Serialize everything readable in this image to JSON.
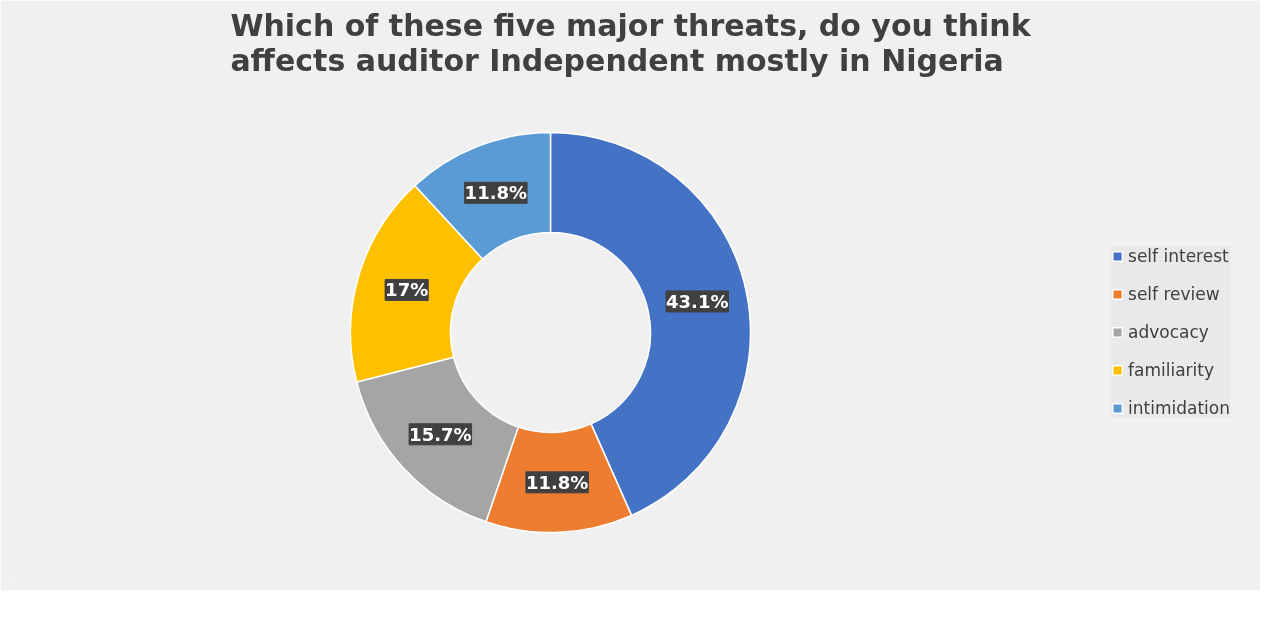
{
  "chart_data": {
    "type": "donut",
    "title": "Which of these five major threats, do you think affects auditor Independent mostly in Nigeria",
    "categories": [
      "self interest",
      "self review",
      "advocacy",
      "familiarity",
      "intimidation"
    ],
    "values": [
      43.1,
      11.8,
      15.7,
      17,
      11.8
    ],
    "colors": [
      "#4472c4",
      "#ed7d31",
      "#a5a5a5",
      "#ffc000",
      "#5b9bd5"
    ],
    "value_labels": [
      "43.1%",
      "11.8%",
      "15.7%",
      "17%",
      "11.8%"
    ],
    "legend": "right"
  }
}
